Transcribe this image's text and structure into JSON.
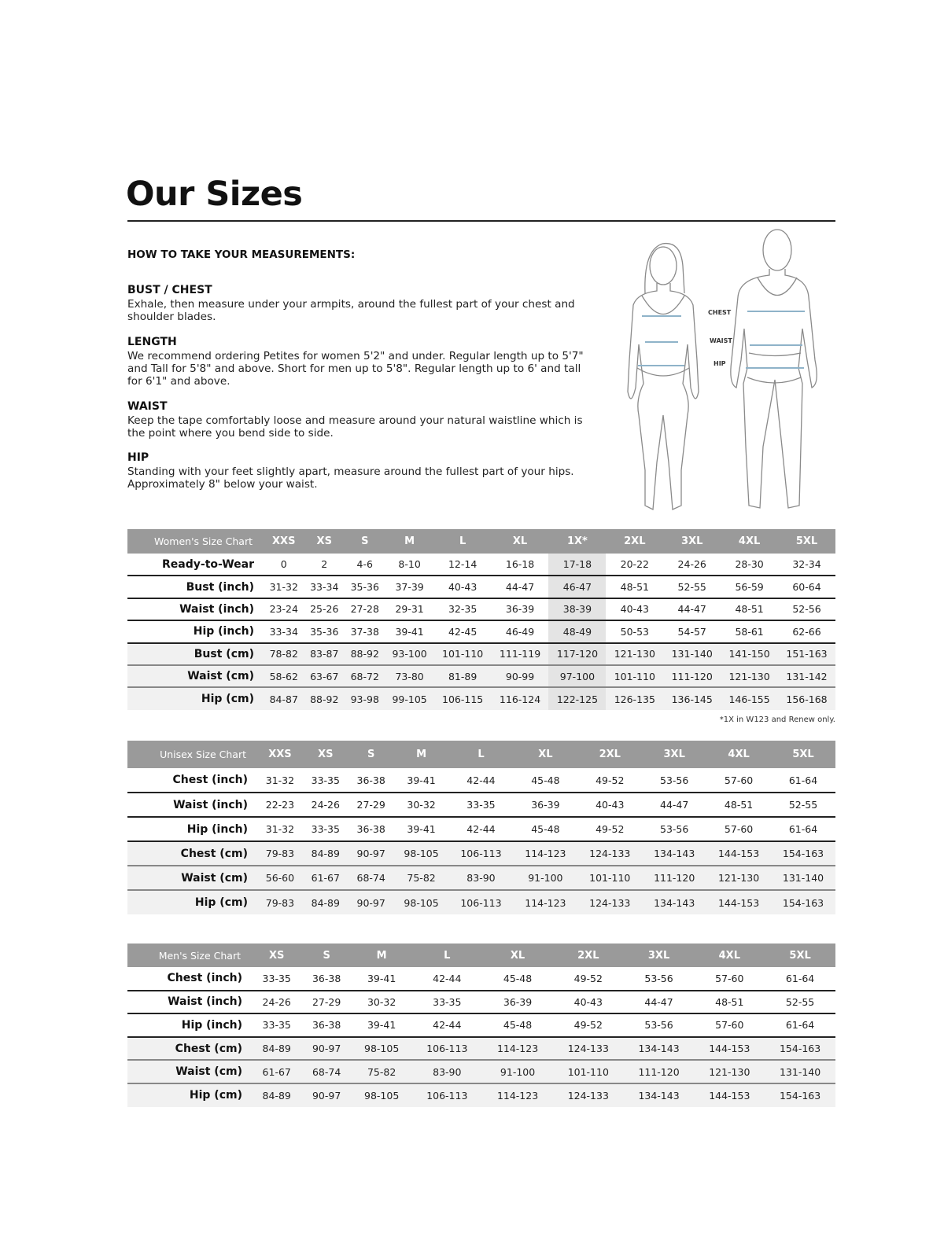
{
  "title": "Our Sizes",
  "howto": "HOW TO TAKE YOUR MEASUREMENTS:",
  "sections": [
    {
      "heading": "BUST / CHEST",
      "text": "Exhale, then measure under your armpits, around the fullest part of your chest and shoulder blades."
    },
    {
      "heading": "LENGTH",
      "text": "We recommend ordering Petites for women 5'2\" and under. Regular length up to 5'7\" and Tall for 5'8\" and above. Short for men up to 5'8\". Regular length up to 6' and tall for 6'1\" and above."
    },
    {
      "heading": "WAIST",
      "text": "Keep the tape comfortably loose and measure around your natural waistline which is the point where you bend side to side."
    },
    {
      "heading": "HIP",
      "text": "Standing with your feet slightly apart, measure around the fullest part of your hips. Approximately 8\" below your waist."
    }
  ],
  "figure_labels": {
    "chest": "CHEST",
    "waist": "WAIST",
    "hip": "HIP"
  },
  "colors": {
    "header_bg": "#9a9a9a",
    "measure_line": "#8fb3c9",
    "highlight": "#e4e4e4"
  },
  "women": {
    "title": "Women's Size Chart",
    "sizes": [
      "XXS",
      "XS",
      "S",
      "M",
      "L",
      "XL",
      "1X*",
      "2XL",
      "3XL",
      "4XL",
      "5XL"
    ],
    "highlight_size": "1X*",
    "rows": [
      {
        "label": "Ready-to-Wear",
        "values": [
          "0",
          "2",
          "4-6",
          "8-10",
          "12-14",
          "16-18",
          "17-18",
          "20-22",
          "24-26",
          "28-30",
          "32-34"
        ]
      },
      {
        "label": "Bust (inch)",
        "values": [
          "31-32",
          "33-34",
          "35-36",
          "37-39",
          "40-43",
          "44-47",
          "46-47",
          "48-51",
          "52-55",
          "56-59",
          "60-64"
        ]
      },
      {
        "label": "Waist (inch)",
        "values": [
          "23-24",
          "25-26",
          "27-28",
          "29-31",
          "32-35",
          "36-39",
          "38-39",
          "40-43",
          "44-47",
          "48-51",
          "52-56"
        ]
      },
      {
        "label": "Hip (inch)",
        "values": [
          "33-34",
          "35-36",
          "37-38",
          "39-41",
          "42-45",
          "46-49",
          "48-49",
          "50-53",
          "54-57",
          "58-61",
          "62-66"
        ]
      },
      {
        "label": "Bust (cm)",
        "values": [
          "78-82",
          "83-87",
          "88-92",
          "93-100",
          "101-110",
          "111-119",
          "117-120",
          "121-130",
          "131-140",
          "141-150",
          "151-163"
        ]
      },
      {
        "label": "Waist (cm)",
        "values": [
          "58-62",
          "63-67",
          "68-72",
          "73-80",
          "81-89",
          "90-99",
          "97-100",
          "101-110",
          "111-120",
          "121-130",
          "131-142"
        ]
      },
      {
        "label": "Hip (cm)",
        "values": [
          "84-87",
          "88-92",
          "93-98",
          "99-105",
          "106-115",
          "116-124",
          "122-125",
          "126-135",
          "136-145",
          "146-155",
          "156-168"
        ]
      }
    ],
    "footnote": "*1X in W123 and Renew only."
  },
  "unisex": {
    "title": "Unisex Size Chart",
    "sizes": [
      "XXS",
      "XS",
      "S",
      "M",
      "L",
      "XL",
      "2XL",
      "3XL",
      "4XL",
      "5XL"
    ],
    "rows": [
      {
        "label": "Chest (inch)",
        "values": [
          "31-32",
          "33-35",
          "36-38",
          "39-41",
          "42-44",
          "45-48",
          "49-52",
          "53-56",
          "57-60",
          "61-64"
        ]
      },
      {
        "label": "Waist (inch)",
        "values": [
          "22-23",
          "24-26",
          "27-29",
          "30-32",
          "33-35",
          "36-39",
          "40-43",
          "44-47",
          "48-51",
          "52-55"
        ]
      },
      {
        "label": "Hip (inch)",
        "values": [
          "31-32",
          "33-35",
          "36-38",
          "39-41",
          "42-44",
          "45-48",
          "49-52",
          "53-56",
          "57-60",
          "61-64"
        ]
      },
      {
        "label": "Chest (cm)",
        "values": [
          "79-83",
          "84-89",
          "90-97",
          "98-105",
          "106-113",
          "114-123",
          "124-133",
          "134-143",
          "144-153",
          "154-163"
        ]
      },
      {
        "label": "Waist (cm)",
        "values": [
          "56-60",
          "61-67",
          "68-74",
          "75-82",
          "83-90",
          "91-100",
          "101-110",
          "111-120",
          "121-130",
          "131-140"
        ]
      },
      {
        "label": "Hip (cm)",
        "values": [
          "79-83",
          "84-89",
          "90-97",
          "98-105",
          "106-113",
          "114-123",
          "124-133",
          "134-143",
          "144-153",
          "154-163"
        ]
      }
    ]
  },
  "men": {
    "title": "Men's Size Chart",
    "sizes": [
      "XS",
      "S",
      "M",
      "L",
      "XL",
      "2XL",
      "3XL",
      "4XL",
      "5XL"
    ],
    "rows": [
      {
        "label": "Chest (inch)",
        "values": [
          "33-35",
          "36-38",
          "39-41",
          "42-44",
          "45-48",
          "49-52",
          "53-56",
          "57-60",
          "61-64"
        ]
      },
      {
        "label": "Waist (inch)",
        "values": [
          "24-26",
          "27-29",
          "30-32",
          "33-35",
          "36-39",
          "40-43",
          "44-47",
          "48-51",
          "52-55"
        ]
      },
      {
        "label": "Hip (inch)",
        "values": [
          "33-35",
          "36-38",
          "39-41",
          "42-44",
          "45-48",
          "49-52",
          "53-56",
          "57-60",
          "61-64"
        ]
      },
      {
        "label": "Chest (cm)",
        "values": [
          "84-89",
          "90-97",
          "98-105",
          "106-113",
          "114-123",
          "124-133",
          "134-143",
          "144-153",
          "154-163"
        ]
      },
      {
        "label": "Waist (cm)",
        "values": [
          "61-67",
          "68-74",
          "75-82",
          "83-90",
          "91-100",
          "101-110",
          "111-120",
          "121-130",
          "131-140"
        ]
      },
      {
        "label": "Hip (cm)",
        "values": [
          "84-89",
          "90-97",
          "98-105",
          "106-113",
          "114-123",
          "124-133",
          "134-143",
          "144-153",
          "154-163"
        ]
      }
    ]
  }
}
